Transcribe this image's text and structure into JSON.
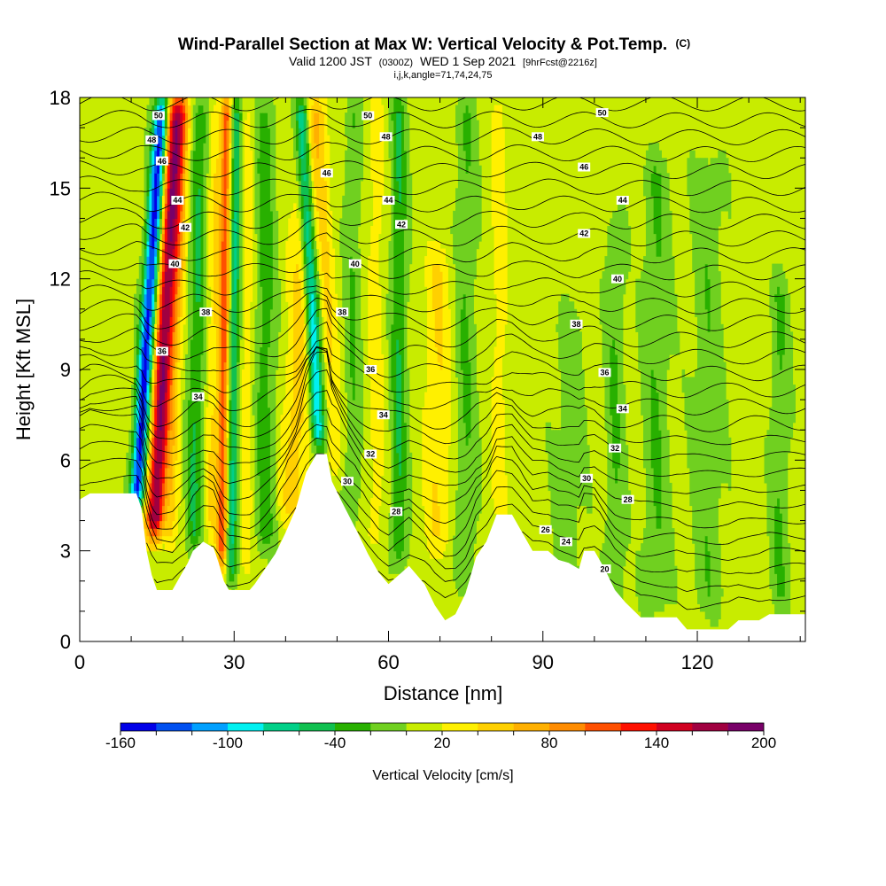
{
  "chart_data": {
    "type": "heatmap",
    "title": "Wind-Parallel Section at Max W: Vertical Velocity & Pot.Temp.",
    "title_mark": "(C)",
    "subtitle_parts": [
      "Valid 1200 JST",
      "(0300Z)",
      "WED 1 Sep 2021",
      "[9hrFcst@2216z]"
    ],
    "subtitle2": "i,j,k,angle=71,74,24,75",
    "xlabel": "Distance [nm]",
    "ylabel": "Height [Kft MSL]",
    "xlim": [
      0,
      141
    ],
    "ylim": [
      0,
      18
    ],
    "x_ticks": [
      "0",
      "30",
      "60",
      "90",
      "120"
    ],
    "x_tick_values": [
      0,
      30,
      60,
      90,
      120
    ],
    "y_ticks": [
      "0",
      "3",
      "6",
      "9",
      "12",
      "15",
      "18"
    ],
    "y_tick_values": [
      0,
      3,
      6,
      9,
      12,
      15,
      18
    ],
    "colorbar": {
      "title": "Vertical Velocity [cm/s]",
      "labels": [
        "-160",
        "-100",
        "-40",
        "20",
        "80",
        "140",
        "200"
      ],
      "label_values": [
        -160,
        -100,
        -40,
        20,
        80,
        140,
        200
      ],
      "levels": [
        -160,
        -140,
        -120,
        -100,
        -80,
        -60,
        -40,
        -20,
        0,
        20,
        40,
        60,
        80,
        100,
        120,
        140,
        160,
        180,
        200
      ],
      "colors": [
        "#0000e8",
        "#0050f0",
        "#00a0ff",
        "#00f0f0",
        "#00d088",
        "#10c050",
        "#28b000",
        "#70d020",
        "#c8ec00",
        "#fff000",
        "#ffd000",
        "#ffb000",
        "#ff8c00",
        "#ff5000",
        "#ff1000",
        "#d00020",
        "#a00040",
        "#780068"
      ]
    },
    "terrain_kft": [
      [
        0,
        4.7
      ],
      [
        2,
        4.9
      ],
      [
        5,
        4.9
      ],
      [
        9,
        4.9
      ],
      [
        11,
        4.9
      ],
      [
        12,
        4.4
      ],
      [
        13,
        3.0
      ],
      [
        14,
        2.2
      ],
      [
        15,
        1.7
      ],
      [
        18,
        1.7
      ],
      [
        19,
        2.0
      ],
      [
        21,
        2.6
      ],
      [
        22,
        3.0
      ],
      [
        24,
        3.3
      ],
      [
        26,
        3.1
      ],
      [
        27,
        2.6
      ],
      [
        28,
        2.0
      ],
      [
        29,
        1.7
      ],
      [
        33,
        1.7
      ],
      [
        34,
        1.9
      ],
      [
        36,
        2.4
      ],
      [
        38,
        2.9
      ],
      [
        40,
        3.6
      ],
      [
        42,
        4.4
      ],
      [
        44,
        5.6
      ],
      [
        46,
        6.2
      ],
      [
        48,
        6.2
      ],
      [
        49,
        5.3
      ],
      [
        51,
        4.6
      ],
      [
        54,
        3.6
      ],
      [
        56,
        2.9
      ],
      [
        58,
        2.3
      ],
      [
        60,
        1.9
      ],
      [
        62,
        2.2
      ],
      [
        64,
        2.5
      ],
      [
        67,
        1.9
      ],
      [
        69,
        1.2
      ],
      [
        71,
        0.7
      ],
      [
        73,
        0.9
      ],
      [
        75,
        1.6
      ],
      [
        77,
        2.8
      ],
      [
        79,
        3.3
      ],
      [
        81,
        4.2
      ],
      [
        84,
        4.2
      ],
      [
        86,
        3.6
      ],
      [
        88,
        3.0
      ],
      [
        91,
        3.0
      ],
      [
        93,
        2.7
      ],
      [
        95,
        2.6
      ],
      [
        97,
        2.4
      ],
      [
        98,
        3.0
      ],
      [
        100,
        3.0
      ],
      [
        102,
        2.4
      ],
      [
        104,
        1.7
      ],
      [
        106,
        1.3
      ],
      [
        109,
        0.8
      ],
      [
        116,
        0.8
      ],
      [
        118,
        0.4
      ],
      [
        126,
        0.4
      ],
      [
        128,
        0.7
      ],
      [
        132,
        0.7
      ],
      [
        134,
        0.9
      ],
      [
        141,
        0.9
      ]
    ],
    "w_features": [
      {
        "x": 11.0,
        "shift": 5.0,
        "y0": 4.4,
        "y1": 18,
        "w": -150,
        "width": 1.4
      },
      {
        "x": 14.5,
        "shift": 4.5,
        "y0": 3.5,
        "y1": 18,
        "w": 180,
        "width": 1.8
      },
      {
        "x": 17.5,
        "shift": 3.0,
        "y0": 3.0,
        "y1": 18,
        "w": 40,
        "width": 1.2
      },
      {
        "x": 22.0,
        "shift": 1.5,
        "y0": 3.0,
        "y1": 18,
        "w": -40,
        "width": 1.6
      },
      {
        "x": 25.5,
        "shift": 1.0,
        "y0": 3.4,
        "y1": 18,
        "w": 40,
        "width": 1.2
      },
      {
        "x": 27.5,
        "shift": 1.0,
        "y0": 2.5,
        "y1": 18,
        "w": 110,
        "width": 1.0
      },
      {
        "x": 29.5,
        "shift": 1.0,
        "y0": 2.0,
        "y1": 18,
        "w": -60,
        "width": 1.0
      },
      {
        "x": 32.0,
        "shift": 1.0,
        "y0": 2.0,
        "y1": 18,
        "w": 30,
        "width": 1.4
      },
      {
        "x": 36.0,
        "shift": 0.0,
        "y0": 3.0,
        "y1": 18,
        "w": -30,
        "width": 2.0
      },
      {
        "x": 41.0,
        "shift": 4.0,
        "y0": 4.0,
        "y1": 18,
        "w": 50,
        "width": 2.5
      },
      {
        "x": 46.5,
        "shift": -3.5,
        "y0": 6.4,
        "y1": 18,
        "w": -100,
        "width": 1.3
      },
      {
        "x": 49.5,
        "shift": -3.0,
        "y0": 5.5,
        "y1": 18,
        "w": 40,
        "width": 1.5
      },
      {
        "x": 53.0,
        "shift": 0.0,
        "y0": 4.0,
        "y1": 18,
        "w": -20,
        "width": 1.5
      },
      {
        "x": 57.5,
        "shift": 0.0,
        "y0": 3.0,
        "y1": 18,
        "w": 30,
        "width": 1.5
      },
      {
        "x": 62.0,
        "shift": 0.0,
        "y0": 2.5,
        "y1": 18,
        "w": -40,
        "width": 1.5
      },
      {
        "x": 69.5,
        "shift": 0.0,
        "y0": 3.0,
        "y1": 13,
        "w": 40,
        "width": 2.5
      },
      {
        "x": 75.0,
        "shift": 0.0,
        "y0": 2.0,
        "y1": 18,
        "w": -20,
        "width": 2.0
      },
      {
        "x": 81.5,
        "shift": 0.0,
        "y0": 4.0,
        "y1": 18,
        "w": 30,
        "width": 1.5
      },
      {
        "x": 95.0,
        "shift": 0.0,
        "y0": 1.5,
        "y1": 11,
        "w": -10,
        "width": 3.0
      },
      {
        "x": 104.0,
        "shift": 0.0,
        "y0": 1.0,
        "y1": 14,
        "w": -20,
        "width": 1.8
      },
      {
        "x": 112.0,
        "shift": 0.0,
        "y0": 1.0,
        "y1": 16,
        "w": -20,
        "width": 2.5
      },
      {
        "x": 122.0,
        "shift": 0.0,
        "y0": 1.0,
        "y1": 16,
        "w": -15,
        "width": 3.0
      },
      {
        "x": 136.0,
        "shift": 0.0,
        "y0": 1.0,
        "y1": 12,
        "w": -20,
        "width": 1.8
      }
    ],
    "theta_contours": {
      "levels_K": [
        20,
        21,
        22,
        23,
        24,
        25,
        26,
        27,
        28,
        29,
        30,
        31,
        32,
        33,
        34,
        35,
        36,
        37,
        38,
        39,
        40,
        41,
        42,
        43,
        44,
        45,
        46,
        47,
        48,
        49,
        50,
        51
      ],
      "labels": [
        {
          "text": "50",
          "x": 15.3,
          "y": 17.4
        },
        {
          "text": "48",
          "x": 14.0,
          "y": 16.6
        },
        {
          "text": "46",
          "x": 16.0,
          "y": 15.9
        },
        {
          "text": "44",
          "x": 19.0,
          "y": 14.6
        },
        {
          "text": "42",
          "x": 20.5,
          "y": 13.7
        },
        {
          "text": "40",
          "x": 18.5,
          "y": 12.5
        },
        {
          "text": "38",
          "x": 24.5,
          "y": 10.9
        },
        {
          "text": "36",
          "x": 16.0,
          "y": 9.6
        },
        {
          "text": "34",
          "x": 23.0,
          "y": 8.1
        },
        {
          "text": "50",
          "x": 56.0,
          "y": 17.4
        },
        {
          "text": "48",
          "x": 59.5,
          "y": 16.7
        },
        {
          "text": "46",
          "x": 48.0,
          "y": 15.5
        },
        {
          "text": "44",
          "x": 60.0,
          "y": 14.6
        },
        {
          "text": "42",
          "x": 62.5,
          "y": 13.8
        },
        {
          "text": "40",
          "x": 53.5,
          "y": 12.5
        },
        {
          "text": "38",
          "x": 51.0,
          "y": 10.9
        },
        {
          "text": "36",
          "x": 56.5,
          "y": 9.0
        },
        {
          "text": "34",
          "x": 59.0,
          "y": 7.5
        },
        {
          "text": "32",
          "x": 56.5,
          "y": 6.2
        },
        {
          "text": "30",
          "x": 52.0,
          "y": 5.3
        },
        {
          "text": "28",
          "x": 61.5,
          "y": 4.3
        },
        {
          "text": "50",
          "x": 101.5,
          "y": 17.5
        },
        {
          "text": "48",
          "x": 89.0,
          "y": 16.7
        },
        {
          "text": "46",
          "x": 98.0,
          "y": 15.7
        },
        {
          "text": "44",
          "x": 105.5,
          "y": 14.6
        },
        {
          "text": "42",
          "x": 98.0,
          "y": 13.5
        },
        {
          "text": "40",
          "x": 104.5,
          "y": 12.0
        },
        {
          "text": "38",
          "x": 96.5,
          "y": 10.5
        },
        {
          "text": "36",
          "x": 102.0,
          "y": 8.9
        },
        {
          "text": "34",
          "x": 105.5,
          "y": 7.7
        },
        {
          "text": "32",
          "x": 104.0,
          "y": 6.4
        },
        {
          "text": "30",
          "x": 98.5,
          "y": 5.4
        },
        {
          "text": "28",
          "x": 106.5,
          "y": 4.7
        },
        {
          "text": "26",
          "x": 90.5,
          "y": 3.7
        },
        {
          "text": "24",
          "x": 94.5,
          "y": 3.3
        },
        {
          "text": "20",
          "x": 102.0,
          "y": 2.4
        }
      ]
    }
  }
}
